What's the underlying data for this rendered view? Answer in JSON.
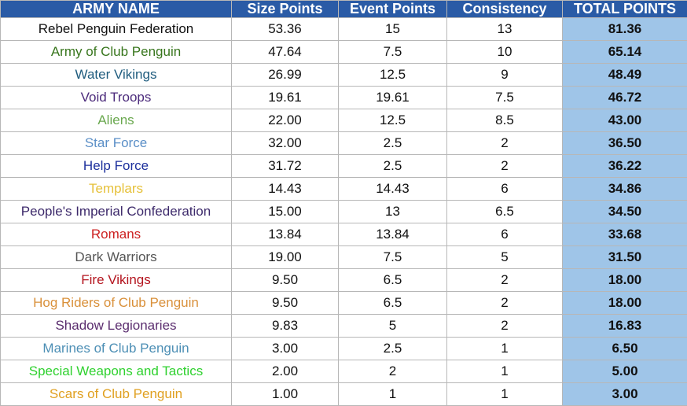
{
  "table": {
    "headers": [
      "ARMY NAME",
      "Size Points",
      "Event Points",
      "Consistency",
      "TOTAL POINTS"
    ],
    "rows": [
      [
        "Rebel Penguin Federation",
        "53.36",
        "15",
        "13",
        "81.36"
      ],
      [
        "Army of Club Penguin",
        "47.64",
        "7.5",
        "10",
        "65.14"
      ],
      [
        "Water Vikings",
        "26.99",
        "12.5",
        "9",
        "48.49"
      ],
      [
        "Void Troops",
        "19.61",
        "19.61",
        "7.5",
        "46.72"
      ],
      [
        "Aliens",
        "22.00",
        "12.5",
        "8.5",
        "43.00"
      ],
      [
        "Star Force",
        "32.00",
        "2.5",
        "2",
        "36.50"
      ],
      [
        "Help Force",
        "31.72",
        "2.5",
        "2",
        "36.22"
      ],
      [
        "Templars",
        "14.43",
        "14.43",
        "6",
        "34.86"
      ],
      [
        "People's Imperial Confederation",
        "15.00",
        "13",
        "6.5",
        "34.50"
      ],
      [
        "Romans",
        "13.84",
        "13.84",
        "6",
        "33.68"
      ],
      [
        "Dark Warriors",
        "19.00",
        "7.5",
        "5",
        "31.50"
      ],
      [
        "Fire Vikings",
        "9.50",
        "6.5",
        "2",
        "18.00"
      ],
      [
        "Hog Riders of Club Penguin",
        "9.50",
        "6.5",
        "2",
        "18.00"
      ],
      [
        "Shadow Legionaries",
        "9.83",
        "5",
        "2",
        "16.83"
      ],
      [
        "Marines of Club Penguin",
        "3.00",
        "2.5",
        "1",
        "6.50"
      ],
      [
        "Special Weapons and Tactics",
        "2.00",
        "2",
        "1",
        "5.00"
      ],
      [
        "Scars of Club Penguin",
        "1.00",
        "1",
        "1",
        "3.00"
      ]
    ],
    "name_colors": [
      "#111111",
      "#38761d",
      "#1f5c7e",
      "#4b2a7b",
      "#6aa84f",
      "#5b8fc7",
      "#1c2f9c",
      "#e6c13a",
      "#3d2a6b",
      "#cc1f1f",
      "#555555",
      "#b4141e",
      "#d9903a",
      "#5a2c6e",
      "#4d8fb5",
      "#2fd12f",
      "#e0a020"
    ]
  }
}
